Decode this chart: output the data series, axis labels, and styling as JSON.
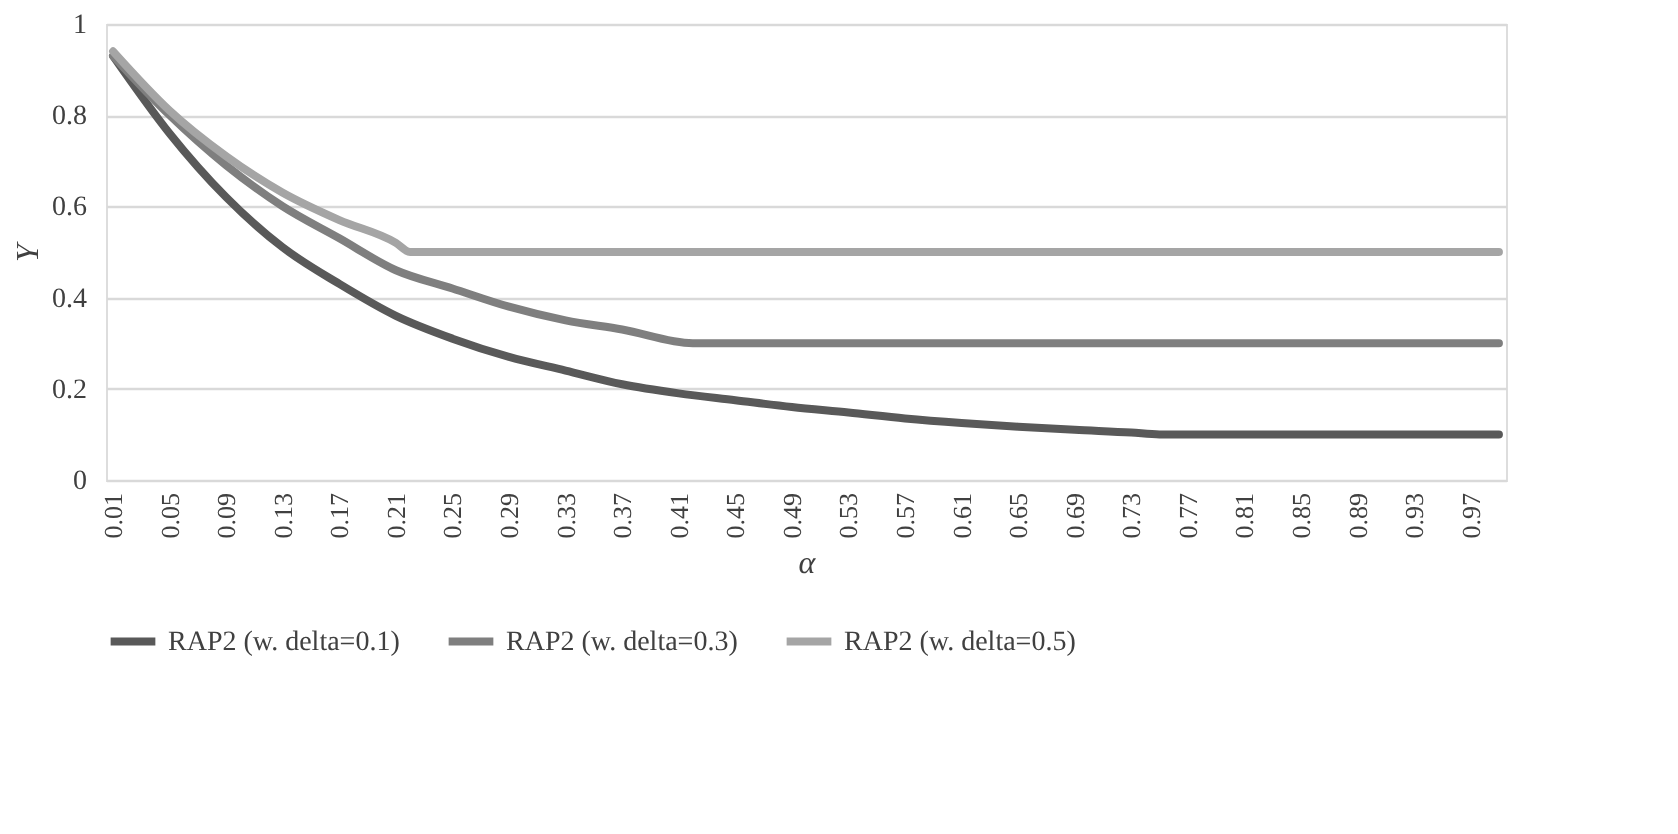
{
  "chart_data": {
    "type": "line",
    "xlabel": "α",
    "ylabel": "Y",
    "xlim": [
      0.005,
      0.995
    ],
    "xticks": [
      0.01,
      0.05,
      0.09,
      0.13,
      0.17,
      0.21,
      0.25,
      0.29,
      0.33,
      0.37,
      0.41,
      0.45,
      0.49,
      0.53,
      0.57,
      0.61,
      0.65,
      0.69,
      0.73,
      0.77,
      0.81,
      0.85,
      0.89,
      0.93,
      0.97
    ],
    "ylim": [
      0,
      1
    ],
    "yticks": [
      0,
      0.2,
      0.4,
      0.6,
      0.8,
      1
    ],
    "grid": "y",
    "legend": "bottom",
    "marker": "none",
    "line_style": "solid",
    "series": [
      {
        "name": "RAP2 (w. delta=0.1)",
        "color": "#595959",
        "x": [
          0.01,
          0.05,
          0.09,
          0.13,
          0.17,
          0.21,
          0.25,
          0.29,
          0.33,
          0.37,
          0.41,
          0.45,
          0.49,
          0.53,
          0.57,
          0.61,
          0.65,
          0.69,
          0.73,
          0.75,
          0.99
        ],
        "values": [
          0.93,
          0.76,
          0.62,
          0.51,
          0.43,
          0.36,
          0.31,
          0.27,
          0.24,
          0.21,
          0.19,
          0.175,
          0.16,
          0.148,
          0.135,
          0.125,
          0.117,
          0.11,
          0.104,
          0.1,
          0.1
        ]
      },
      {
        "name": "RAP2 (w. delta=0.3)",
        "color": "#7f7f7f",
        "x": [
          0.01,
          0.05,
          0.09,
          0.13,
          0.17,
          0.21,
          0.25,
          0.29,
          0.33,
          0.37,
          0.42,
          0.99
        ],
        "values": [
          0.93,
          0.8,
          0.69,
          0.6,
          0.53,
          0.46,
          0.42,
          0.38,
          0.35,
          0.33,
          0.3,
          0.3
        ]
      },
      {
        "name": "RAP2 (w. delta=0.5)",
        "color": "#a5a5a5",
        "x": [
          0.01,
          0.05,
          0.09,
          0.13,
          0.17,
          0.21,
          0.22,
          0.99
        ],
        "values": [
          0.94,
          0.81,
          0.71,
          0.63,
          0.57,
          0.52,
          0.5,
          0.5
        ]
      }
    ]
  }
}
